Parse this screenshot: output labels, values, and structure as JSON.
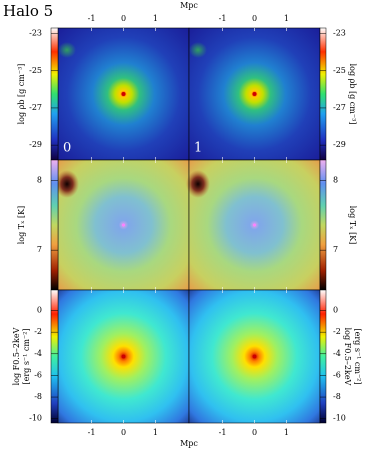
{
  "chart_data": {
    "type": "heatmap",
    "title": "Halo 5",
    "xlabel": "Mpc",
    "xlim": [
      -2.05,
      2.05
    ],
    "xticks": [
      -1,
      0,
      1
    ],
    "panels": [
      "0",
      "1"
    ],
    "rows": [
      {
        "label": [
          "log ρb [g cm⁻³]"
        ],
        "ylim": [
          -29.8,
          -22.7
        ],
        "yticks": [
          -23,
          -25,
          -27,
          -29
        ]
      },
      {
        "label": [
          "log Tₓ [K]"
        ],
        "ylim": [
          6.43,
          8.29
        ],
        "yticks": [
          8,
          7
        ]
      },
      {
        "label": [
          "log F0.5–2keV",
          "[erg s⁻¹ cm⁻²]"
        ],
        "ylim": [
          -10.4,
          1.9
        ],
        "yticks": [
          0,
          -2,
          -4,
          -6,
          -8,
          -10
        ]
      }
    ]
  }
}
